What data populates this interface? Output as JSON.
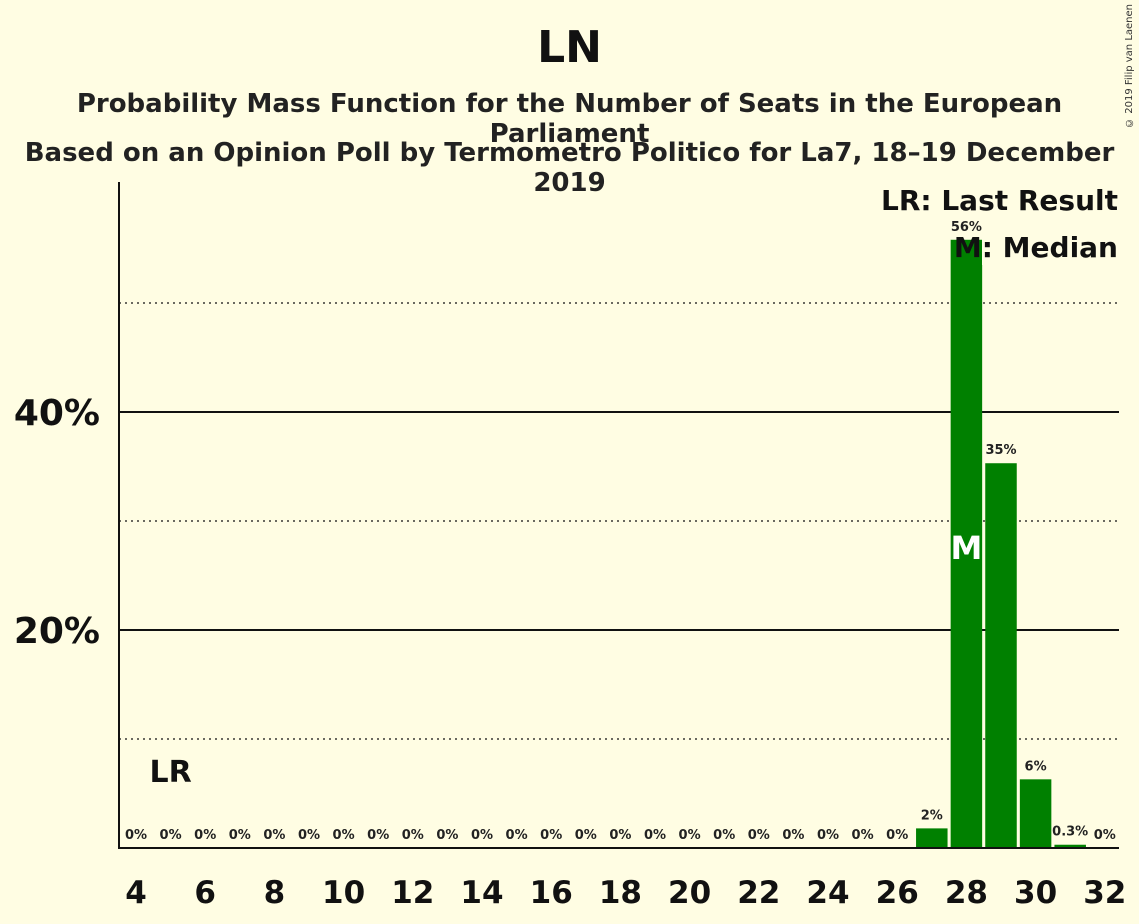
{
  "title": "LN",
  "subtitle_1": "Probability Mass Function for the Number of Seats in the European Parliament",
  "subtitle_2": "Based on an Opinion Poll by Termometro Politico for La7, 18–19 December 2019",
  "copyright": "© 2019 Filip van Laenen",
  "legend": {
    "last_result": "LR: Last Result",
    "median": "M: Median"
  },
  "markers": {
    "last_result_label": "LR",
    "median_label": "M"
  },
  "colors": {
    "bar": "#008000",
    "background": "#fffde3"
  },
  "chart_data": {
    "type": "bar",
    "x": [
      4,
      5,
      6,
      7,
      8,
      9,
      10,
      11,
      12,
      13,
      14,
      15,
      16,
      17,
      18,
      19,
      20,
      21,
      22,
      23,
      24,
      25,
      26,
      27,
      28,
      29,
      30,
      31,
      32
    ],
    "values": [
      0,
      0,
      0,
      0,
      0,
      0,
      0,
      0,
      0,
      0,
      0,
      0,
      0,
      0,
      0,
      0,
      0,
      0,
      0,
      0,
      0,
      0,
      0,
      1.8,
      55.8,
      35.3,
      6.3,
      0.3,
      0
    ],
    "data_labels": [
      "0%",
      "0%",
      "0%",
      "0%",
      "0%",
      "0%",
      "0%",
      "0%",
      "0%",
      "0%",
      "0%",
      "0%",
      "0%",
      "0%",
      "0%",
      "0%",
      "0%",
      "0%",
      "0%",
      "0%",
      "0%",
      "0%",
      "0%",
      "2%",
      "56%",
      "35%",
      "6%",
      "0.3%",
      "0%"
    ],
    "xtick_labels": [
      "4",
      "6",
      "8",
      "10",
      "12",
      "14",
      "16",
      "18",
      "20",
      "22",
      "24",
      "26",
      "28",
      "30",
      "32"
    ],
    "ytick_labels": [
      "20%",
      "40%"
    ],
    "ylim": [
      0,
      61
    ],
    "major_gridlines": [
      20,
      40
    ],
    "minor_gridlines": [
      10,
      30,
      50
    ],
    "last_result_seat": 5,
    "median_seat": 28
  }
}
